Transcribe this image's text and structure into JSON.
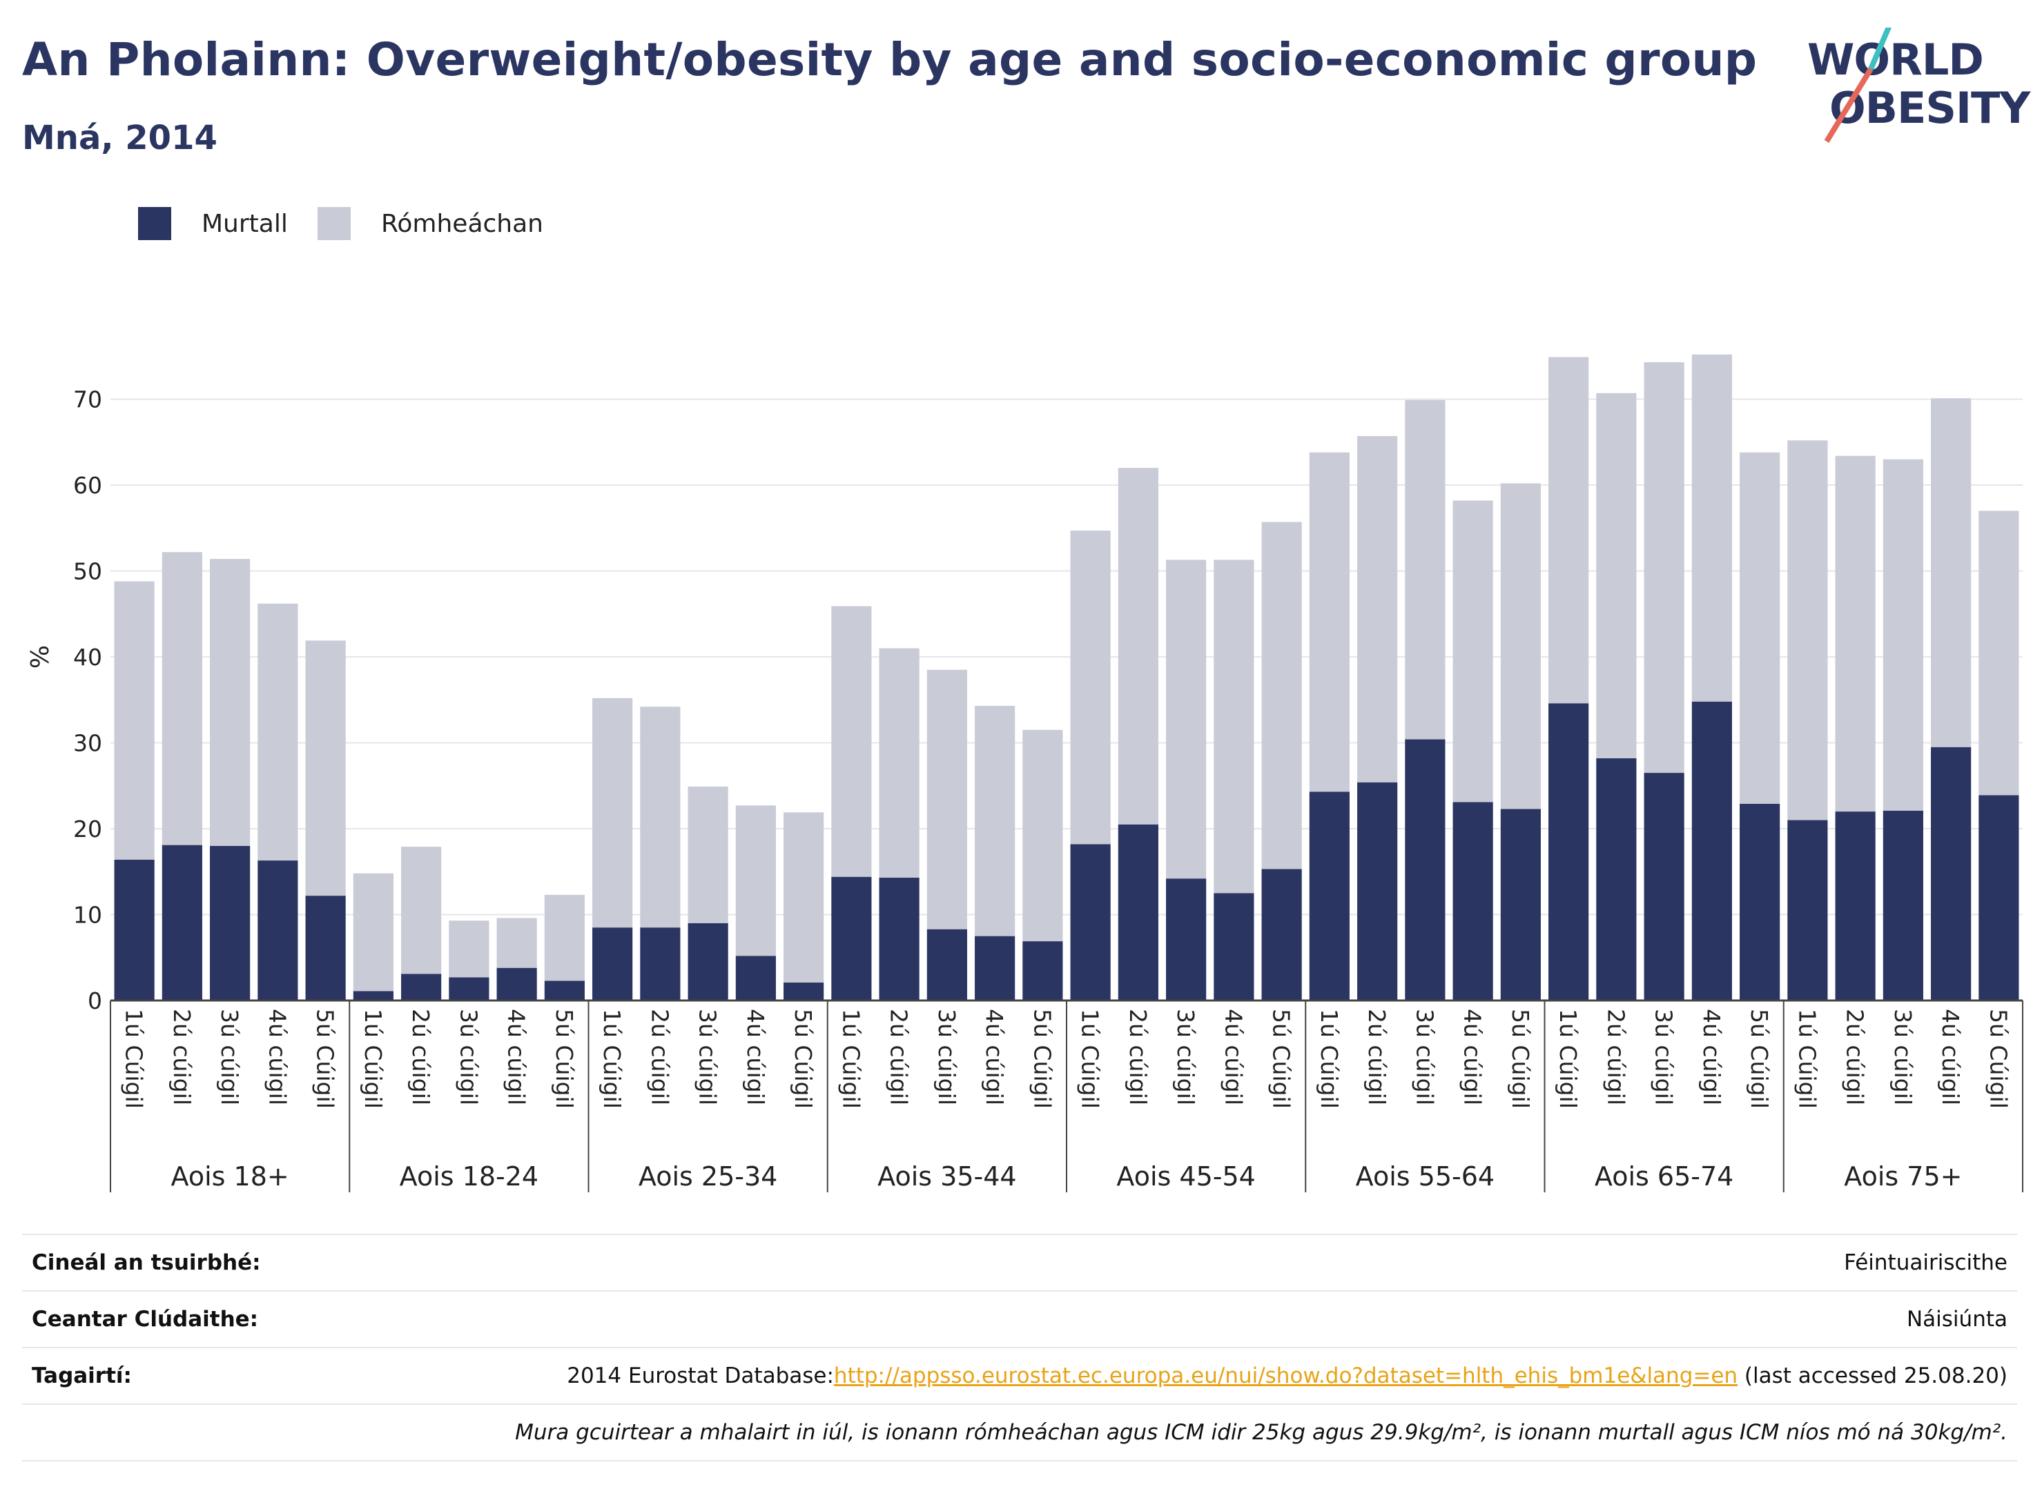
{
  "header": {
    "title": "An Pholainn: Overweight/obesity by age and socio-economic group",
    "subtitle": "Mná, 2014"
  },
  "logo": {
    "line1": "WORLD",
    "line2": "OBESITY"
  },
  "colors": {
    "obese": "#2b3562",
    "overweight": "#c9cbd7",
    "title": "#2b3562",
    "slash_teal": "#3ebfc2",
    "slash_coral": "#e5685a",
    "link": "#e8a317"
  },
  "legend": [
    {
      "label": "Murtall",
      "color": "#2b3562"
    },
    {
      "label": "Rómheáchan",
      "color": "#c9cbd7"
    }
  ],
  "chart_data": {
    "type": "bar",
    "stacked": true,
    "ylabel": "%",
    "ylim": [
      0,
      80
    ],
    "yticks": [
      0,
      10,
      20,
      30,
      40,
      50,
      60,
      70
    ],
    "grid": true,
    "legend_position": "top-left",
    "groups": [
      {
        "label": "Aois 18+",
        "categories": [
          "1ú Cúigil",
          "2ú cúigil",
          "3ú cúigil",
          "4ú cúigil",
          "5ú Cúigil"
        ]
      },
      {
        "label": "Aois 18-24",
        "categories": [
          "1ú Cúigil",
          "2ú cúigil",
          "3ú cúigil",
          "4ú cúigil",
          "5ú Cúigil"
        ]
      },
      {
        "label": "Aois 25-34",
        "categories": [
          "1ú Cúigil",
          "2ú cúigil",
          "3ú cúigil",
          "4ú cúigil",
          "5ú Cúigil"
        ]
      },
      {
        "label": "Aois 35-44",
        "categories": [
          "1ú Cúigil",
          "2ú cúigil",
          "3ú cúigil",
          "4ú cúigil",
          "5ú Cúigil"
        ]
      },
      {
        "label": "Aois 45-54",
        "categories": [
          "1ú Cúigil",
          "2ú cúigil",
          "3ú cúigil",
          "4ú cúigil",
          "5ú Cúigil"
        ]
      },
      {
        "label": "Aois 55-64",
        "categories": [
          "1ú Cúigil",
          "2ú cúigil",
          "3ú cúigil",
          "4ú cúigil",
          "5ú Cúigil"
        ]
      },
      {
        "label": "Aois 65-74",
        "categories": [
          "1ú Cúigil",
          "2ú cúigil",
          "3ú cúigil",
          "4ú cúigil",
          "5ú Cúigil"
        ]
      },
      {
        "label": "Aois 75+",
        "categories": [
          "1ú Cúigil",
          "2ú cúigil",
          "3ú cúigil",
          "4ú cúigil",
          "5ú Cúigil"
        ]
      }
    ],
    "series": [
      {
        "name": "Murtall",
        "values": [
          16.4,
          18.1,
          18.0,
          16.3,
          12.2,
          1.1,
          3.1,
          2.7,
          3.8,
          2.3,
          8.5,
          8.5,
          9.0,
          5.2,
          2.1,
          14.4,
          14.3,
          8.3,
          7.5,
          6.9,
          18.2,
          20.5,
          14.2,
          12.5,
          15.3,
          24.3,
          25.4,
          30.4,
          23.1,
          22.3,
          34.6,
          28.2,
          26.5,
          34.8,
          22.9,
          21.0,
          22.0,
          22.1,
          29.5,
          23.9
        ]
      },
      {
        "name": "Rómheáchan",
        "values": [
          32.4,
          34.1,
          33.4,
          29.9,
          29.7,
          13.7,
          14.8,
          6.6,
          5.8,
          10.0,
          26.7,
          25.7,
          15.9,
          17.5,
          19.8,
          31.5,
          26.7,
          30.2,
          26.8,
          24.6,
          36.5,
          41.5,
          37.1,
          38.8,
          40.4,
          39.5,
          40.3,
          39.5,
          35.1,
          37.9,
          40.3,
          42.5,
          47.8,
          40.4,
          40.9,
          44.2,
          41.4,
          40.9,
          40.6,
          33.1
        ]
      }
    ]
  },
  "footer": {
    "rows": [
      {
        "label": "Cineál an tsuirbhé:",
        "value": "Féintuairiscithe"
      },
      {
        "label": "Ceantar Clúdaithe:",
        "value": "Náisiúnta"
      }
    ],
    "references": {
      "label": "Tagairtí:",
      "prefix": "2014 Eurostat Database:",
      "link": "http://appsso.eurostat.ec.europa.eu/nui/show.do?dataset=hlth_ehis_bm1e&lang=en",
      "suffix": " (last accessed 25.08.20)"
    },
    "note": "Mura gcuirtear a mhalairt in iúl, is ionann rómheáchan agus ICM idir 25kg agus 29.9kg/m², is ionann murtall agus ICM níos mó ná 30kg/m²."
  }
}
